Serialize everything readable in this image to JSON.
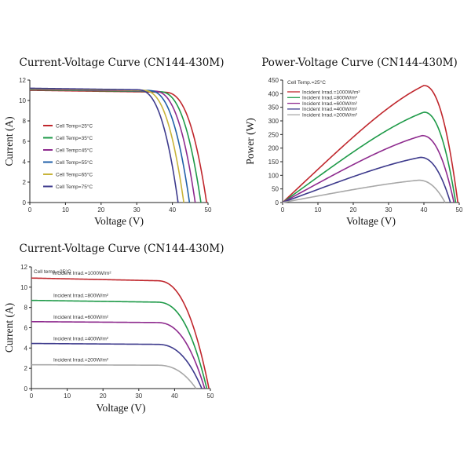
{
  "chart_data": [
    {
      "id": "iv-temp",
      "type": "line",
      "title": "Current-Voltage Curve (CN144-430M)",
      "xlabel": "Voltage (V)",
      "ylabel": "Current (A)",
      "xlim": [
        0,
        50
      ],
      "ylim": [
        0,
        12
      ],
      "xticks": [
        0,
        10,
        20,
        30,
        40,
        50
      ],
      "yticks": [
        0,
        2,
        4,
        6,
        8,
        10,
        12
      ],
      "grid": false,
      "legend_position": "left",
      "legend_header": "",
      "series": [
        {
          "name": "Cell Temp=25°C",
          "color": "#c0272d",
          "isc": 11.0,
          "voc": 49.6,
          "vk": 37.5
        },
        {
          "name": "Cell Temp=35°C",
          "color": "#1e9a48",
          "isc": 11.05,
          "voc": 48.0,
          "vk": 36.0
        },
        {
          "name": "Cell Temp=45°C",
          "color": "#8e2b8e",
          "isc": 11.1,
          "voc": 46.4,
          "vk": 34.5
        },
        {
          "name": "Cell Temp=55°C",
          "color": "#1f5fa8",
          "isc": 11.15,
          "voc": 44.8,
          "vk": 33.0
        },
        {
          "name": "Cell Temp=65°C",
          "color": "#c8b43a",
          "isc": 11.15,
          "voc": 43.2,
          "vk": 31.5
        },
        {
          "name": "Cell Temp=75°C",
          "color": "#3d3a8c",
          "isc": 11.2,
          "voc": 41.6,
          "vk": 30.0
        }
      ]
    },
    {
      "id": "pv-irrad",
      "type": "line",
      "title": "Power-Voltage Curve (CN144-430M)",
      "xlabel": "Voltage (V)",
      "ylabel": "Power (W)",
      "xlim": [
        0,
        50
      ],
      "ylim": [
        0,
        450
      ],
      "xticks": [
        0,
        10,
        20,
        30,
        40,
        50
      ],
      "yticks": [
        0,
        50,
        100,
        150,
        200,
        250,
        300,
        350,
        400,
        450
      ],
      "grid": false,
      "legend_position": "top-left",
      "legend_header": "Cell Temp.=25°C",
      "series": [
        {
          "name": "Incident Irrad.=1000W/m²",
          "color": "#c0272d",
          "pmax": 430,
          "vmp": 40.0,
          "voc": 49.6
        },
        {
          "name": "Incident Irrad.=800W/m²",
          "color": "#1e9a48",
          "pmax": 332,
          "vmp": 40.0,
          "voc": 49.0
        },
        {
          "name": "Incident Irrad.=600W/m²",
          "color": "#8e2b8e",
          "pmax": 246,
          "vmp": 39.5,
          "voc": 48.5
        },
        {
          "name": "Incident Irrad.=400W/m²",
          "color": "#3d3a8c",
          "pmax": 166,
          "vmp": 39.0,
          "voc": 47.5
        },
        {
          "name": "Incident Irrad.=200W/m²",
          "color": "#a8a8a8",
          "pmax": 82,
          "vmp": 38.5,
          "voc": 46.0
        }
      ]
    },
    {
      "id": "iv-irrad",
      "type": "line",
      "title": "Current-Voltage Curve (CN144-430M)",
      "xlabel": "Voltage (V)",
      "ylabel": "Current (A)",
      "xlim": [
        0,
        50
      ],
      "ylim": [
        0,
        12
      ],
      "xticks": [
        0,
        10,
        20,
        30,
        40,
        50
      ],
      "yticks": [
        0,
        2,
        4,
        6,
        8,
        10,
        12
      ],
      "grid": false,
      "legend_position": "inline",
      "legend_header": "Cell temp.=25°C",
      "series": [
        {
          "name": "Incident Irrad.=1000W/m²",
          "color": "#c0272d",
          "isc": 10.9,
          "i40": 10.6,
          "voc": 49.6
        },
        {
          "name": "Incident Irrad.=800W/m²",
          "color": "#1e9a48",
          "isc": 8.7,
          "i40": 8.5,
          "voc": 49.0
        },
        {
          "name": "Incident Irrad.=600W/m²",
          "color": "#8e2b8e",
          "isc": 6.6,
          "i40": 6.5,
          "voc": 48.4
        },
        {
          "name": "Incident Irrad.=400W/m²",
          "color": "#3d3a8c",
          "isc": 4.45,
          "i40": 4.35,
          "voc": 47.6
        },
        {
          "name": "Incident Irrad.=200W/m²",
          "color": "#a8a8a8",
          "isc": 2.35,
          "i40": 2.3,
          "voc": 46.0
        }
      ]
    }
  ]
}
